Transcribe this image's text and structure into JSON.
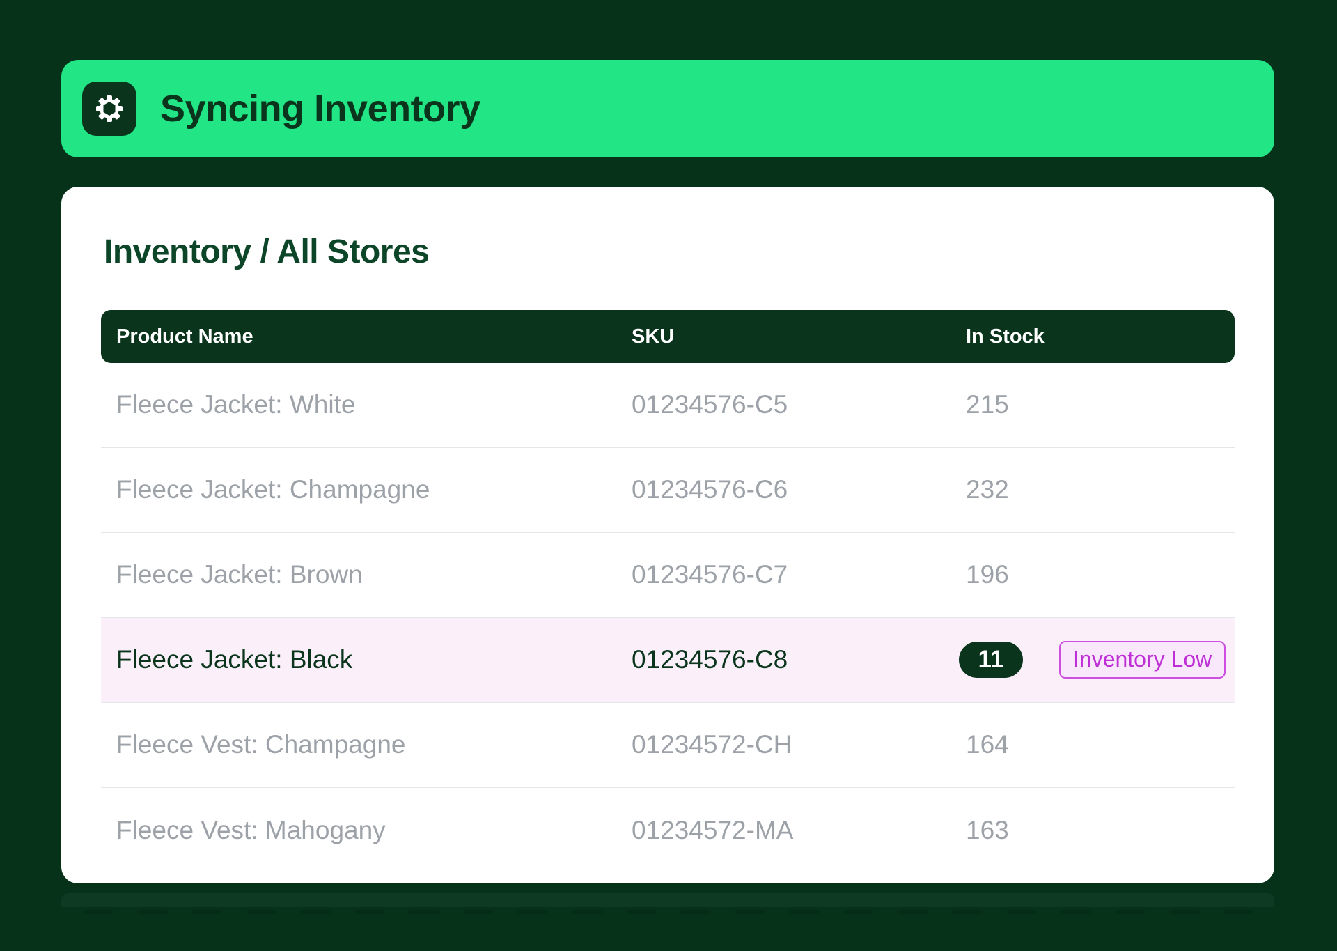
{
  "banner": {
    "title": "Syncing Inventory",
    "icon": "gear-icon"
  },
  "page": {
    "title": "Inventory / All Stores"
  },
  "table": {
    "columns": [
      "Product Name",
      "SKU",
      "In Stock"
    ],
    "rows": [
      {
        "name": "Fleece Jacket: White",
        "sku": "01234576-C5",
        "stock": "215"
      },
      {
        "name": "Fleece Jacket: Champagne",
        "sku": "01234576-C6",
        "stock": "232"
      },
      {
        "name": "Fleece Jacket: Brown",
        "sku": "01234576-C7",
        "stock": "196"
      },
      {
        "name": "Fleece Jacket: Black",
        "sku": "01234576-C8",
        "stock": "11",
        "highlighted": true,
        "status": "Inventory Low"
      },
      {
        "name": "Fleece Vest: Champagne",
        "sku": "01234572-CH",
        "stock": "164"
      },
      {
        "name": "Fleece Vest: Mahogany",
        "sku": "01234572-MA",
        "stock": "163"
      }
    ]
  },
  "colors": {
    "page_bg": "#06321A",
    "accent_green": "#22E586",
    "dark_green": "#0A351C",
    "title_green": "#0C4527",
    "row_text": "#9DA2A8",
    "divider": "#E5E6E8",
    "highlight_row_bg": "#FBF0FA",
    "magenta": "#BE30D5",
    "magenta_border": "#CC4FE0",
    "magenta_bg": "#F9E8FC",
    "card_bg": "#FFFFFF"
  }
}
